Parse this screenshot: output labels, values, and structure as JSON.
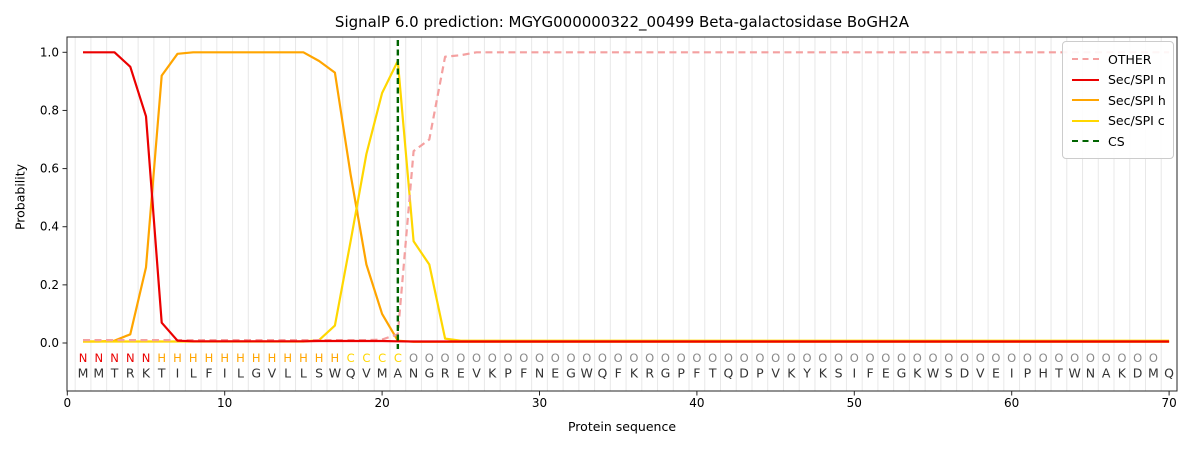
{
  "title": "SignalP 6.0 prediction: MGYG000000322_00499 Beta-galactosidase BoGH2A",
  "chart_data": {
    "type": "line",
    "title": "SignalP 6.0 prediction: MGYG000000322_00499 Beta-galactosidase BoGH2A",
    "xlabel": "Protein sequence",
    "ylabel": "Probability",
    "xlim": [
      0,
      70.5
    ],
    "ylim": [
      -0.165,
      1.05
    ],
    "x_ticks": [
      0,
      10,
      20,
      30,
      40,
      50,
      60,
      70
    ],
    "y_ticks": [
      "0.0",
      "0.2",
      "0.4",
      "0.6",
      "0.8",
      "1.0"
    ],
    "grid": "vertical lines between every residue, light gray",
    "legend_position": "upper right",
    "sequence": "MMTRKTILFILGVLLSWQVMANGREVKPFNEGWQFKRGPFTQDPVKYKSIFEGKWSDVEIPHTWNAKDMQ",
    "region_labels": "NNNNNHHHHHHHHHHHHCCCCOOOOOOOOOOOOOOOOOOOOOOOOOOOOOOOOOOOOOOOOOOOOOOOO",
    "region_colors": {
      "N": "#eb0000",
      "H": "#ffa500",
      "C": "#ffd700",
      "O": "#8a8a8a"
    },
    "sequence_color": "#333333",
    "cs_position": 21,
    "series": [
      {
        "name": "Sec/SPI h",
        "color": "#ffa500",
        "dash": false,
        "x": [
          1,
          2,
          3,
          4,
          5,
          6,
          7,
          8,
          9,
          10,
          11,
          12,
          13,
          14,
          15,
          16,
          17,
          18,
          19,
          20,
          21,
          22,
          23,
          24,
          25,
          26,
          27,
          28,
          29,
          30,
          31,
          32,
          33,
          34,
          35,
          36,
          37,
          38,
          39,
          40,
          41,
          42,
          43,
          44,
          45,
          46,
          47,
          48,
          49,
          50,
          51,
          52,
          53,
          54,
          55,
          56,
          57,
          58,
          59,
          60,
          61,
          62,
          63,
          64,
          65,
          66,
          67,
          68,
          69,
          70
        ],
        "values": [
          0.005,
          0.005,
          0.008,
          0.03,
          0.26,
          0.92,
          0.995,
          1.0,
          1.0,
          1.0,
          1.0,
          1.0,
          1.0,
          1.0,
          1.0,
          0.97,
          0.93,
          0.58,
          0.27,
          0.1,
          0.008,
          0.004,
          0.004,
          0.004,
          0.004,
          0.004,
          0.004,
          0.004,
          0.004,
          0.004,
          0.004,
          0.004,
          0.004,
          0.004,
          0.004,
          0.004,
          0.004,
          0.004,
          0.004,
          0.004,
          0.004,
          0.004,
          0.004,
          0.004,
          0.004,
          0.004,
          0.004,
          0.004,
          0.004,
          0.004,
          0.004,
          0.004,
          0.004,
          0.004,
          0.004,
          0.004,
          0.004,
          0.004,
          0.004,
          0.004,
          0.004,
          0.004,
          0.004,
          0.004,
          0.004,
          0.004,
          0.004,
          0.004,
          0.004,
          0.004
        ]
      },
      {
        "name": "Sec/SPI c",
        "color": "#ffd700",
        "dash": false,
        "x": [
          1,
          2,
          3,
          4,
          5,
          6,
          7,
          8,
          9,
          10,
          11,
          12,
          13,
          14,
          15,
          16,
          17,
          18,
          19,
          20,
          21,
          22,
          23,
          24,
          25,
          26,
          27,
          28,
          29,
          30,
          31,
          32,
          33,
          34,
          35,
          36,
          37,
          38,
          39,
          40,
          41,
          42,
          43,
          44,
          45,
          46,
          47,
          48,
          49,
          50,
          51,
          52,
          53,
          54,
          55,
          56,
          57,
          58,
          59,
          60,
          61,
          62,
          63,
          64,
          65,
          66,
          67,
          68,
          69,
          70
        ],
        "values": [
          0.005,
          0.005,
          0.005,
          0.005,
          0.005,
          0.005,
          0.005,
          0.005,
          0.005,
          0.005,
          0.005,
          0.005,
          0.005,
          0.005,
          0.005,
          0.01,
          0.06,
          0.35,
          0.65,
          0.86,
          0.97,
          0.35,
          0.27,
          0.015,
          0.008,
          0.008,
          0.008,
          0.008,
          0.008,
          0.008,
          0.008,
          0.008,
          0.008,
          0.008,
          0.008,
          0.008,
          0.008,
          0.008,
          0.008,
          0.008,
          0.008,
          0.008,
          0.008,
          0.008,
          0.008,
          0.008,
          0.008,
          0.008,
          0.008,
          0.008,
          0.008,
          0.008,
          0.008,
          0.008,
          0.008,
          0.008,
          0.008,
          0.008,
          0.008,
          0.008,
          0.008,
          0.008,
          0.008,
          0.008,
          0.008,
          0.008,
          0.008,
          0.008,
          0.008,
          0.008
        ]
      },
      {
        "name": "OTHER",
        "color": "#f4a0a0",
        "dash": true,
        "x": [
          1,
          2,
          3,
          4,
          5,
          6,
          7,
          8,
          9,
          10,
          11,
          12,
          13,
          14,
          15,
          16,
          17,
          18,
          19,
          20,
          21,
          22,
          23,
          24,
          25,
          26,
          27,
          28,
          29,
          30,
          31,
          32,
          33,
          34,
          35,
          36,
          37,
          38,
          39,
          40,
          41,
          42,
          43,
          44,
          45,
          46,
          47,
          48,
          49,
          50,
          51,
          52,
          53,
          54,
          55,
          56,
          57,
          58,
          59,
          60,
          61,
          62,
          63,
          64,
          65,
          66,
          67,
          68,
          69,
          70
        ],
        "values": [
          0.01,
          0.01,
          0.01,
          0.01,
          0.01,
          0.01,
          0.01,
          0.01,
          0.01,
          0.01,
          0.01,
          0.01,
          0.01,
          0.01,
          0.01,
          0.01,
          0.01,
          0.01,
          0.01,
          0.012,
          0.03,
          0.66,
          0.7,
          0.985,
          0.99,
          1.0,
          1.0,
          1.0,
          1.0,
          1.0,
          1.0,
          1.0,
          1.0,
          1.0,
          1.0,
          1.0,
          1.0,
          1.0,
          1.0,
          1.0,
          1.0,
          1.0,
          1.0,
          1.0,
          1.0,
          1.0,
          1.0,
          1.0,
          1.0,
          1.0,
          1.0,
          1.0,
          1.0,
          1.0,
          1.0,
          1.0,
          1.0,
          1.0,
          1.0,
          1.0,
          1.0,
          1.0,
          1.0,
          1.0,
          1.0,
          1.0,
          1.0,
          1.0,
          1.0,
          1.0
        ]
      },
      {
        "name": "Sec/SPI n",
        "color": "#eb0000",
        "dash": false,
        "x": [
          1,
          2,
          3,
          4,
          5,
          6,
          7,
          8,
          9,
          10,
          11,
          12,
          13,
          14,
          15,
          16,
          17,
          18,
          19,
          20,
          21,
          22,
          23,
          24,
          25,
          26,
          27,
          28,
          29,
          30,
          31,
          32,
          33,
          34,
          35,
          36,
          37,
          38,
          39,
          40,
          41,
          42,
          43,
          44,
          45,
          46,
          47,
          48,
          49,
          50,
          51,
          52,
          53,
          54,
          55,
          56,
          57,
          58,
          59,
          60,
          61,
          62,
          63,
          64,
          65,
          66,
          67,
          68,
          69,
          70
        ],
        "values": [
          1.0,
          1.0,
          1.0,
          0.95,
          0.78,
          0.07,
          0.008,
          0.006,
          0.006,
          0.006,
          0.006,
          0.006,
          0.006,
          0.006,
          0.006,
          0.007,
          0.007,
          0.007,
          0.007,
          0.007,
          0.006,
          0.005,
          0.005,
          0.005,
          0.005,
          0.005,
          0.005,
          0.005,
          0.005,
          0.005,
          0.005,
          0.005,
          0.005,
          0.005,
          0.005,
          0.005,
          0.005,
          0.005,
          0.005,
          0.005,
          0.005,
          0.005,
          0.005,
          0.005,
          0.005,
          0.005,
          0.005,
          0.005,
          0.005,
          0.005,
          0.005,
          0.005,
          0.005,
          0.005,
          0.005,
          0.005,
          0.005,
          0.005,
          0.005,
          0.005,
          0.005,
          0.005,
          0.005,
          0.005,
          0.005,
          0.005,
          0.005,
          0.005,
          0.005,
          0.005
        ]
      }
    ],
    "cs_line": {
      "name": "CS",
      "color": "#006400",
      "dash": true
    }
  },
  "legend": {
    "items": [
      {
        "label": "OTHER",
        "color": "#f4a0a0",
        "dash": true
      },
      {
        "label": "Sec/SPI n",
        "color": "#eb0000",
        "dash": false
      },
      {
        "label": "Sec/SPI h",
        "color": "#ffa500",
        "dash": false
      },
      {
        "label": "Sec/SPI c",
        "color": "#ffd700",
        "dash": false
      },
      {
        "label": "CS",
        "color": "#006400",
        "dash": true
      }
    ]
  },
  "axis": {
    "spine_color": "#262626",
    "grid_color": "#e8e8e8",
    "tick_label_color": "#000000"
  }
}
